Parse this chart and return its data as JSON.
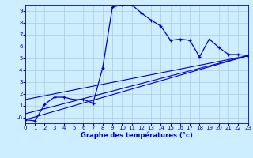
{
  "xlabel": "Graphe des températures (°c)",
  "background_color": "#cceeff",
  "grid_color": "#aaccdd",
  "line_color": "#0000cc",
  "xlim": [
    0,
    23
  ],
  "ylim": [
    -0.5,
    9.5
  ],
  "xticks": [
    0,
    1,
    2,
    3,
    4,
    5,
    6,
    7,
    8,
    9,
    10,
    11,
    12,
    13,
    14,
    15,
    16,
    17,
    18,
    19,
    20,
    21,
    22,
    23
  ],
  "yticks": [
    0,
    1,
    2,
    3,
    4,
    5,
    6,
    7,
    8,
    9
  ],
  "ytick_labels": [
    "-0",
    "1",
    "2",
    "3",
    "4",
    "5",
    "6",
    "7",
    "8",
    "9"
  ],
  "curve1_x": [
    0,
    1,
    2,
    3,
    4,
    5,
    6,
    7,
    8,
    9,
    10,
    11,
    12,
    13,
    14,
    15,
    16,
    17,
    18,
    19,
    20,
    21,
    22,
    23
  ],
  "curve1_y": [
    -0.2,
    -0.3,
    1.1,
    1.7,
    1.7,
    1.5,
    1.5,
    1.2,
    4.2,
    9.3,
    9.5,
    9.5,
    8.8,
    8.2,
    7.7,
    6.5,
    6.6,
    6.5,
    5.1,
    6.6,
    5.9,
    5.3,
    5.3,
    5.2
  ],
  "line1_x": [
    0,
    23
  ],
  "line1_y": [
    -0.2,
    5.2
  ],
  "line2_x": [
    0,
    23
  ],
  "line2_y": [
    1.5,
    5.2
  ],
  "line3_x": [
    0,
    23
  ],
  "line3_y": [
    0.3,
    5.2
  ],
  "tick_fontsize": 5.0,
  "xlabel_fontsize": 6.0
}
